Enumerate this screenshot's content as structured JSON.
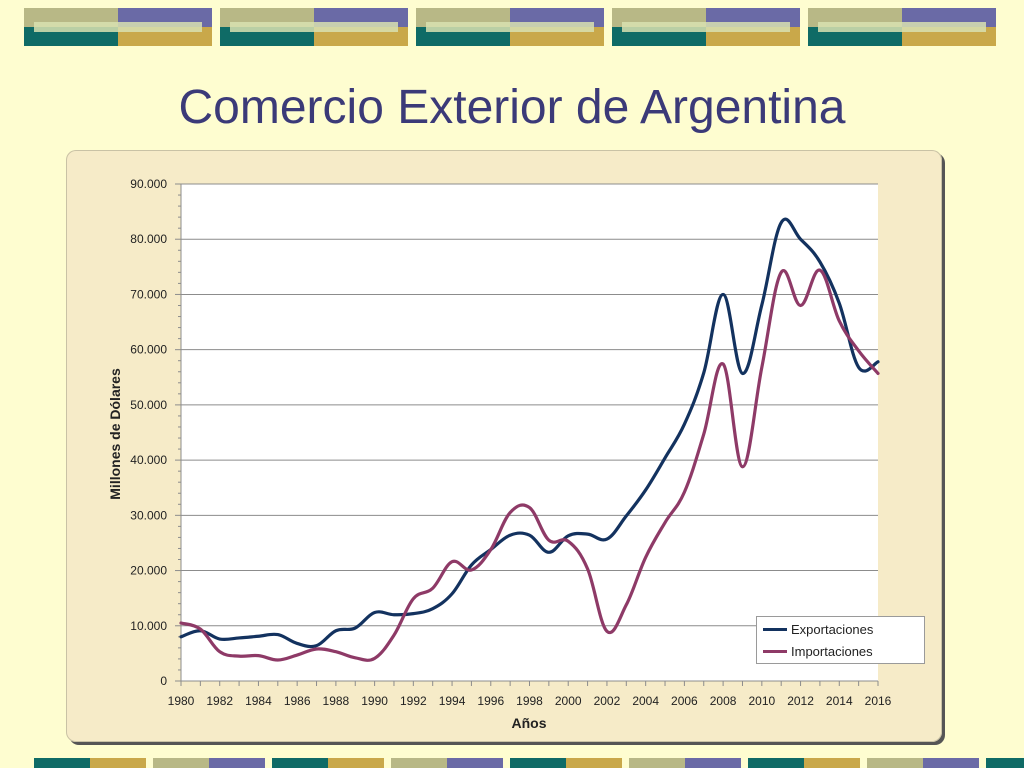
{
  "slide": {
    "title": "Comercio Exterior de Argentina"
  },
  "colors": {
    "background": "#fefdd0",
    "title": "#3b3a78",
    "exports": "#13325f",
    "imports": "#8e3a67",
    "deco_navy": "#6a6aa6",
    "deco_khaki": "#b8b886",
    "deco_teal": "#0f6b66",
    "deco_gold": "#c9a84a"
  },
  "chart_data": {
    "type": "line",
    "title": "",
    "xlabel": "Años",
    "ylabel": "Millones de Dólares",
    "x": [
      1980,
      1981,
      1982,
      1983,
      1984,
      1985,
      1986,
      1987,
      1988,
      1989,
      1990,
      1991,
      1992,
      1993,
      1994,
      1995,
      1996,
      1997,
      1998,
      1999,
      2000,
      2001,
      2002,
      2003,
      2004,
      2005,
      2006,
      2007,
      2008,
      2009,
      2010,
      2011,
      2012,
      2013,
      2014,
      2015,
      2016
    ],
    "xticks": [
      "1980",
      "1982",
      "1984",
      "1986",
      "1988",
      "1990",
      "1992",
      "1994",
      "1996",
      "1998",
      "2000",
      "2002",
      "2004",
      "2006",
      "2008",
      "2010",
      "2012",
      "2014",
      "2016"
    ],
    "yticks": [
      "0",
      "10.000",
      "20.000",
      "30.000",
      "40.000",
      "50.000",
      "60.000",
      "70.000",
      "80.000",
      "90.000"
    ],
    "ylim": [
      0,
      90000
    ],
    "grid": true,
    "legend_position": "bottom-right",
    "series": [
      {
        "name": "Exportaciones",
        "values": [
          8000,
          9100,
          7600,
          7800,
          8100,
          8400,
          6800,
          6400,
          9100,
          9600,
          12400,
          12000,
          12200,
          13100,
          15800,
          21000,
          23800,
          26400,
          26400,
          23300,
          26300,
          26600,
          25700,
          29900,
          34600,
          40400,
          46500,
          55800,
          70000,
          55700,
          68100,
          83000,
          80000,
          75900,
          68400,
          56800,
          57800
        ]
      },
      {
        "name": "Importaciones",
        "values": [
          10500,
          9400,
          5300,
          4500,
          4600,
          3800,
          4700,
          5800,
          5300,
          4200,
          4100,
          8300,
          14900,
          16800,
          21600,
          20100,
          23800,
          30500,
          31400,
          25500,
          25300,
          20300,
          9000,
          13800,
          22400,
          28700,
          34200,
          44700,
          57400,
          38800,
          56800,
          74000,
          68000,
          74400,
          65200,
          59800,
          55700
        ]
      }
    ]
  }
}
